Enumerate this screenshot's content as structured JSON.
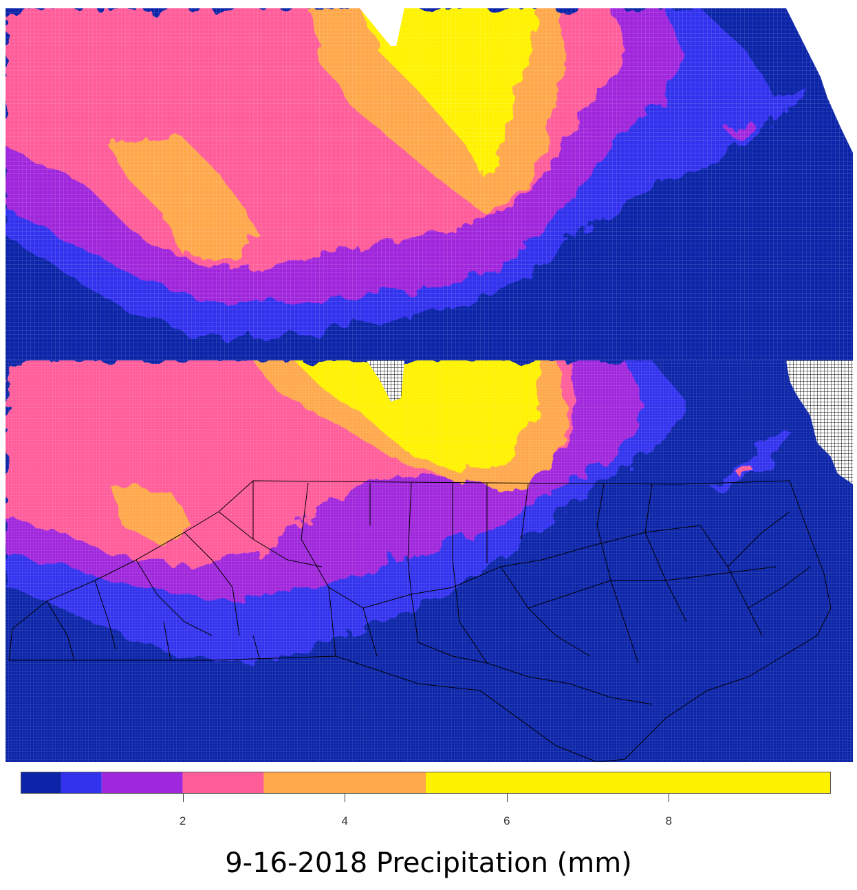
{
  "title": "9-16-2018 Precipitation (mm)",
  "legend": {
    "unit": "mm",
    "min": 0,
    "max": 10,
    "breaks": [
      0,
      0.5,
      1,
      2,
      3,
      5,
      10
    ],
    "colors": [
      "#0b24a8",
      "#3333ee",
      "#a028dc",
      "#ff5c9a",
      "#ffa84c",
      "#fff200"
    ],
    "ticks": [
      "2",
      "4",
      "6",
      "8"
    ],
    "tick_values": [
      2,
      4,
      6,
      8
    ]
  },
  "panels": [
    {
      "name": "raw-grid-map"
    },
    {
      "name": "downscaled-grid-map-with-county-boundaries"
    }
  ],
  "chart_data": {
    "type": "heatmap",
    "title": "9-16-2018 Precipitation (mm)",
    "color_scale": {
      "breaks": [
        0,
        0.5,
        1,
        2,
        3,
        5,
        10
      ],
      "ticks": [
        2,
        4,
        6,
        8
      ]
    },
    "regions_by_precip_class": {
      "0-0.5": "southern and eastern areas, ocean",
      "0.5-1": "belts bordering wetter areas",
      "1-2": "central band",
      "2-3": "west and southwest",
      "3-5": "scattered patches",
      "5-10": "north-central maximum"
    }
  }
}
